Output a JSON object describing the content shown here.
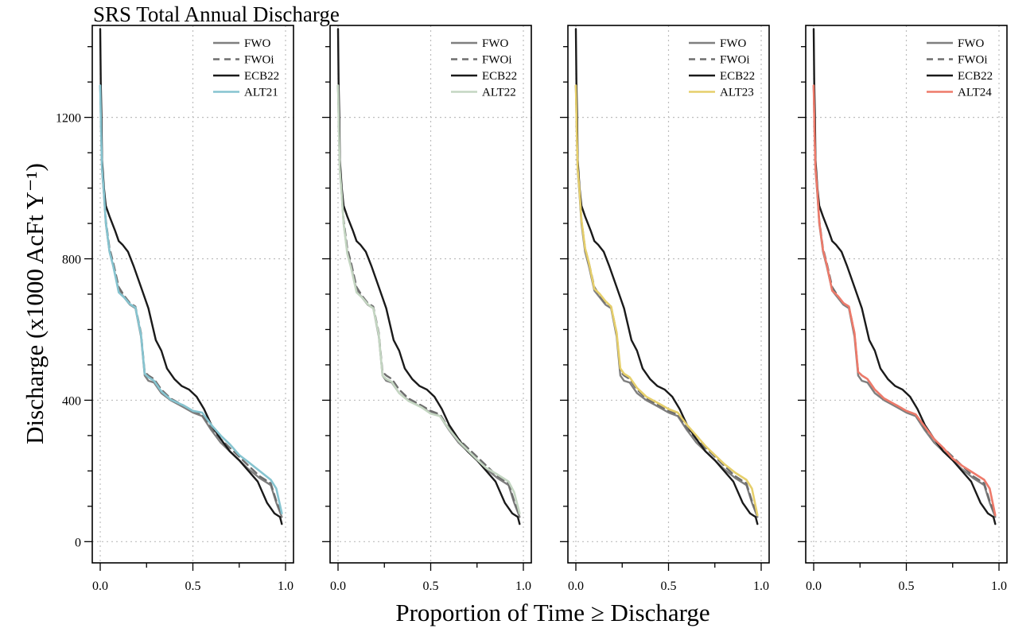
{
  "chart_data": {
    "type": "line",
    "title": "SRS Total Annual Discharge",
    "xlabel": "Proportion of Time ≥ Discharge",
    "ylabel": "Discharge (x1000 AcFt Y⁻¹)",
    "xlim": [
      0,
      1
    ],
    "ylim": [
      -60,
      1460
    ],
    "xticks": [
      0.0,
      0.5,
      1.0
    ],
    "xtick_labels": [
      "0.0",
      "0.5",
      "1.0"
    ],
    "yticks": [
      0,
      400,
      800,
      1200
    ],
    "ytick_labels": [
      "0",
      "400",
      "800",
      "1200"
    ],
    "grid": true,
    "legend_position": "top-right",
    "colors": {
      "FWO": "#7f7f7f",
      "FWOi": "#6e6e6e",
      "ECB22": "#1a1a1a",
      "ALT21": "#86c4d0",
      "ALT22": "#c4d6c2",
      "ALT23": "#e6cf6b",
      "ALT24": "#ee7a6a"
    },
    "baseline_series": [
      {
        "name": "FWO",
        "style": "solid",
        "x": [
          0.0,
          0.005,
          0.01,
          0.02,
          0.03,
          0.05,
          0.07,
          0.1,
          0.13,
          0.16,
          0.19,
          0.22,
          0.24,
          0.26,
          0.29,
          0.33,
          0.38,
          0.45,
          0.5,
          0.55,
          0.6,
          0.65,
          0.7,
          0.75,
          0.8,
          0.86,
          0.92,
          0.95,
          0.98
        ],
        "y": [
          1290,
          1150,
          1050,
          980,
          900,
          820,
          780,
          710,
          690,
          670,
          660,
          580,
          470,
          455,
          450,
          420,
          400,
          380,
          365,
          355,
          315,
          280,
          255,
          230,
          205,
          180,
          160,
          110,
          70
        ]
      },
      {
        "name": "FWOi",
        "style": "dashed",
        "x": [
          0.0,
          0.005,
          0.01,
          0.02,
          0.03,
          0.05,
          0.07,
          0.1,
          0.13,
          0.16,
          0.19,
          0.22,
          0.24,
          0.26,
          0.29,
          0.33,
          0.38,
          0.45,
          0.5,
          0.55,
          0.6,
          0.65,
          0.7,
          0.75,
          0.8,
          0.86,
          0.92,
          0.95,
          0.98
        ],
        "y": [
          1290,
          1160,
          1060,
          990,
          910,
          830,
          790,
          720,
          695,
          675,
          665,
          590,
          480,
          470,
          460,
          430,
          405,
          385,
          370,
          360,
          320,
          290,
          265,
          240,
          215,
          185,
          165,
          115,
          75
        ]
      },
      {
        "name": "ECB22",
        "style": "solid",
        "x": [
          0.0,
          0.003,
          0.007,
          0.01,
          0.02,
          0.03,
          0.05,
          0.08,
          0.1,
          0.12,
          0.15,
          0.18,
          0.22,
          0.26,
          0.3,
          0.33,
          0.36,
          0.4,
          0.44,
          0.48,
          0.52,
          0.56,
          0.6,
          0.65,
          0.7,
          0.75,
          0.8,
          0.85,
          0.9,
          0.94,
          0.97,
          0.98
        ],
        "y": [
          1450,
          1300,
          1200,
          1080,
          1000,
          950,
          920,
          880,
          850,
          840,
          820,
          780,
          720,
          660,
          570,
          540,
          490,
          460,
          440,
          430,
          410,
          375,
          330,
          290,
          255,
          230,
          200,
          170,
          110,
          80,
          70,
          50
        ]
      }
    ],
    "panels": [
      {
        "name": "ALT21",
        "x": [
          0.0,
          0.005,
          0.01,
          0.02,
          0.03,
          0.05,
          0.07,
          0.1,
          0.13,
          0.16,
          0.19,
          0.22,
          0.24,
          0.26,
          0.29,
          0.33,
          0.38,
          0.45,
          0.5,
          0.55,
          0.6,
          0.65,
          0.7,
          0.75,
          0.8,
          0.86,
          0.92,
          0.95,
          0.98
        ],
        "y": [
          1290,
          1150,
          1055,
          985,
          905,
          820,
          780,
          705,
          690,
          672,
          662,
          585,
          475,
          465,
          455,
          425,
          402,
          385,
          370,
          365,
          330,
          300,
          275,
          245,
          225,
          200,
          175,
          150,
          80
        ]
      },
      {
        "name": "ALT22",
        "x": [
          0.0,
          0.005,
          0.01,
          0.02,
          0.03,
          0.05,
          0.07,
          0.1,
          0.13,
          0.16,
          0.19,
          0.22,
          0.24,
          0.26,
          0.29,
          0.33,
          0.38,
          0.45,
          0.5,
          0.55,
          0.6,
          0.65,
          0.7,
          0.75,
          0.8,
          0.86,
          0.92,
          0.95,
          0.98
        ],
        "y": [
          1290,
          1150,
          1050,
          980,
          900,
          815,
          775,
          705,
          690,
          672,
          660,
          585,
          470,
          460,
          452,
          420,
          398,
          380,
          362,
          355,
          318,
          285,
          258,
          232,
          208,
          190,
          170,
          140,
          80
        ]
      },
      {
        "name": "ALT23",
        "x": [
          0.0,
          0.005,
          0.01,
          0.02,
          0.03,
          0.05,
          0.07,
          0.1,
          0.13,
          0.16,
          0.19,
          0.22,
          0.24,
          0.26,
          0.29,
          0.33,
          0.38,
          0.45,
          0.5,
          0.55,
          0.6,
          0.65,
          0.7,
          0.75,
          0.8,
          0.86,
          0.92,
          0.95,
          0.98
        ],
        "y": [
          1290,
          1155,
          1055,
          990,
          910,
          830,
          790,
          715,
          700,
          680,
          665,
          590,
          490,
          475,
          465,
          435,
          410,
          390,
          375,
          365,
          330,
          300,
          270,
          245,
          220,
          195,
          175,
          150,
          75
        ]
      },
      {
        "name": "ALT24",
        "x": [
          0.0,
          0.005,
          0.01,
          0.02,
          0.03,
          0.05,
          0.07,
          0.1,
          0.13,
          0.16,
          0.19,
          0.22,
          0.24,
          0.26,
          0.29,
          0.33,
          0.38,
          0.45,
          0.5,
          0.55,
          0.6,
          0.65,
          0.7,
          0.75,
          0.8,
          0.86,
          0.92,
          0.95,
          0.98
        ],
        "y": [
          1290,
          1150,
          1055,
          990,
          905,
          825,
          785,
          710,
          695,
          675,
          665,
          590,
          480,
          470,
          460,
          430,
          405,
          385,
          370,
          360,
          325,
          290,
          265,
          235,
          215,
          195,
          175,
          150,
          75
        ]
      }
    ]
  }
}
